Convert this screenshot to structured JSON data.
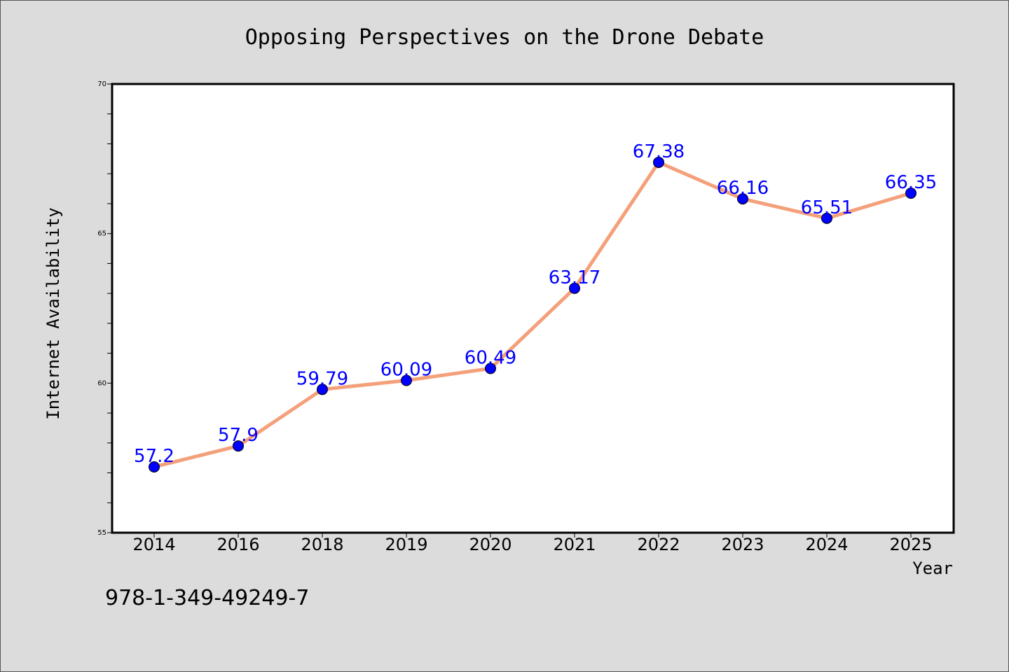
{
  "chart_data": {
    "type": "line",
    "title": "Opposing Perspectives on the Drone Debate",
    "xlabel": "Year",
    "ylabel": "Internet Availability",
    "categories": [
      "2014",
      "2016",
      "2018",
      "2019",
      "2020",
      "2021",
      "2022",
      "2023",
      "2024",
      "2025"
    ],
    "series": [
      {
        "values": [
          57.2,
          57.9,
          59.79,
          60.09,
          60.49,
          63.17,
          67.38,
          66.16,
          65.51,
          66.35
        ],
        "labels": [
          "57.2",
          "57.9",
          "59.79",
          "60.09",
          "60.49",
          "63.17",
          "67.38",
          "66.16",
          "65.51",
          "66.35"
        ],
        "line_color": "#f4a07a",
        "marker_color": "#0000ff",
        "label_color": "#0000ff"
      }
    ],
    "ylim": [
      55,
      70
    ],
    "yticks": [
      "55",
      "60",
      "65",
      "70"
    ],
    "grid": false,
    "legend": "none",
    "background": "#dcdcdc",
    "plot_background": "#ffffff"
  },
  "footer": {
    "isbn": "978-1-349-49249-7"
  }
}
